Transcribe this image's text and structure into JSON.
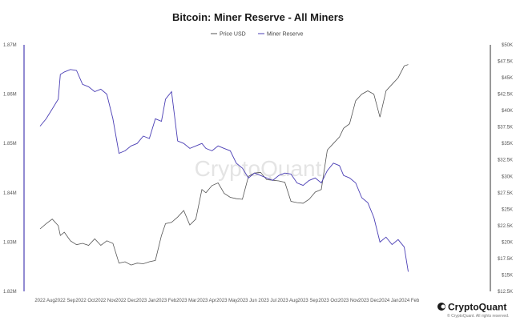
{
  "chart_data": {
    "type": "line",
    "title": "Bitcoin: Miner Reserve - All Miners",
    "legend_position": "top-center",
    "grid": false,
    "x_categories": [
      "2022 Aug",
      "2022 Sep",
      "2022 Oct",
      "2022 Nov",
      "2022 Dec",
      "2023 Jan",
      "2023 Feb",
      "2023 Mar",
      "2023 Apr",
      "2023 May",
      "2023 Jun",
      "2023 Jul",
      "2023 Aug",
      "2023 Sep",
      "2023 Oct",
      "2023 Nov",
      "2023 Dec",
      "2024 Jan",
      "2024 Feb"
    ],
    "y_left": {
      "ticks": [
        "1.82M",
        "1.83M",
        "1.84M",
        "1.85M",
        "1.86M",
        "1.87M"
      ],
      "range": [
        1820000,
        1870000
      ]
    },
    "y_right": {
      "ticks": [
        "$12.5K",
        "$15K",
        "$17.5K",
        "$20K",
        "$22.5K",
        "$25K",
        "$27.5K",
        "$30K",
        "$32.5K",
        "$35K",
        "$37.5K",
        "$40K",
        "$42.5K",
        "$45K",
        "$47.5K",
        "$50K"
      ],
      "range": [
        12500,
        50000
      ]
    },
    "series": [
      {
        "name": "Price USD",
        "axis": "right",
        "color": "#555555",
        "x": [
          0,
          0.3,
          0.6,
          0.9,
          1.0,
          1.2,
          1.5,
          1.8,
          2.1,
          2.4,
          2.7,
          3.0,
          3.3,
          3.6,
          3.9,
          4.2,
          4.5,
          4.8,
          5.1,
          5.4,
          5.7,
          6.0,
          6.2,
          6.5,
          6.8,
          7.1,
          7.4,
          7.7,
          8.0,
          8.2,
          8.5,
          8.8,
          9.1,
          9.4,
          9.7,
          10.0,
          10.3,
          10.6,
          10.9,
          11.2,
          11.5,
          11.8,
          12.1,
          12.4,
          12.7,
          13.0,
          13.3,
          13.6,
          13.9,
          14.2,
          14.5,
          14.8,
          15.0,
          15.3,
          15.6,
          15.9,
          16.2,
          16.5,
          16.8,
          17.1,
          17.4,
          17.7,
          18.0,
          18.2
        ],
        "values": [
          22000,
          22800,
          23500,
          22500,
          21000,
          21500,
          20200,
          19600,
          19800,
          19500,
          20500,
          19500,
          20200,
          19800,
          16800,
          17000,
          16500,
          16800,
          16700,
          17000,
          17200,
          21000,
          22800,
          23000,
          23800,
          24800,
          22600,
          23500,
          28000,
          27500,
          28600,
          29000,
          27400,
          26800,
          26600,
          26500,
          30000,
          30500,
          30600,
          29500,
          29400,
          29300,
          29100,
          26200,
          26000,
          25900,
          26500,
          27600,
          28000,
          34000,
          35000,
          36000,
          37300,
          38000,
          41500,
          42500,
          43000,
          42500,
          39000,
          43000,
          44000,
          45000,
          46800,
          47000
        ]
      },
      {
        "name": "Miner Reserve",
        "axis": "left",
        "color": "#4b3fb5",
        "x": [
          0,
          0.3,
          0.6,
          0.9,
          1.0,
          1.2,
          1.5,
          1.8,
          2.1,
          2.4,
          2.7,
          3.0,
          3.3,
          3.6,
          3.9,
          4.2,
          4.5,
          4.8,
          5.1,
          5.4,
          5.7,
          6.0,
          6.2,
          6.5,
          6.8,
          7.1,
          7.4,
          7.7,
          8.0,
          8.2,
          8.5,
          8.8,
          9.1,
          9.4,
          9.7,
          10.0,
          10.3,
          10.6,
          10.9,
          11.2,
          11.5,
          11.8,
          12.1,
          12.4,
          12.7,
          13.0,
          13.3,
          13.6,
          13.9,
          14.2,
          14.5,
          14.8,
          15.0,
          15.3,
          15.6,
          15.9,
          16.2,
          16.5,
          16.8,
          17.1,
          17.4,
          17.7,
          18.0,
          18.2
        ],
        "values": [
          1853500,
          1855000,
          1857000,
          1859000,
          1864000,
          1864500,
          1865000,
          1864800,
          1862000,
          1861500,
          1860500,
          1861000,
          1860000,
          1855000,
          1848000,
          1848500,
          1849500,
          1850000,
          1851500,
          1851000,
          1855000,
          1854500,
          1859000,
          1860500,
          1850500,
          1850000,
          1849000,
          1849500,
          1850000,
          1849000,
          1848500,
          1849500,
          1849000,
          1848500,
          1846000,
          1845000,
          1843000,
          1844000,
          1843500,
          1843000,
          1842500,
          1843500,
          1844000,
          1843800,
          1842000,
          1841500,
          1842500,
          1843000,
          1842000,
          1844500,
          1846000,
          1845500,
          1843500,
          1843000,
          1842000,
          1839000,
          1838000,
          1835000,
          1830000,
          1831000,
          1829500,
          1830500,
          1829000,
          1824000
        ]
      }
    ]
  },
  "watermark": "CryptoQuant",
  "brand": {
    "name": "CryptoQuant",
    "copyright": "© CryptoQuant. All rights reserved."
  }
}
